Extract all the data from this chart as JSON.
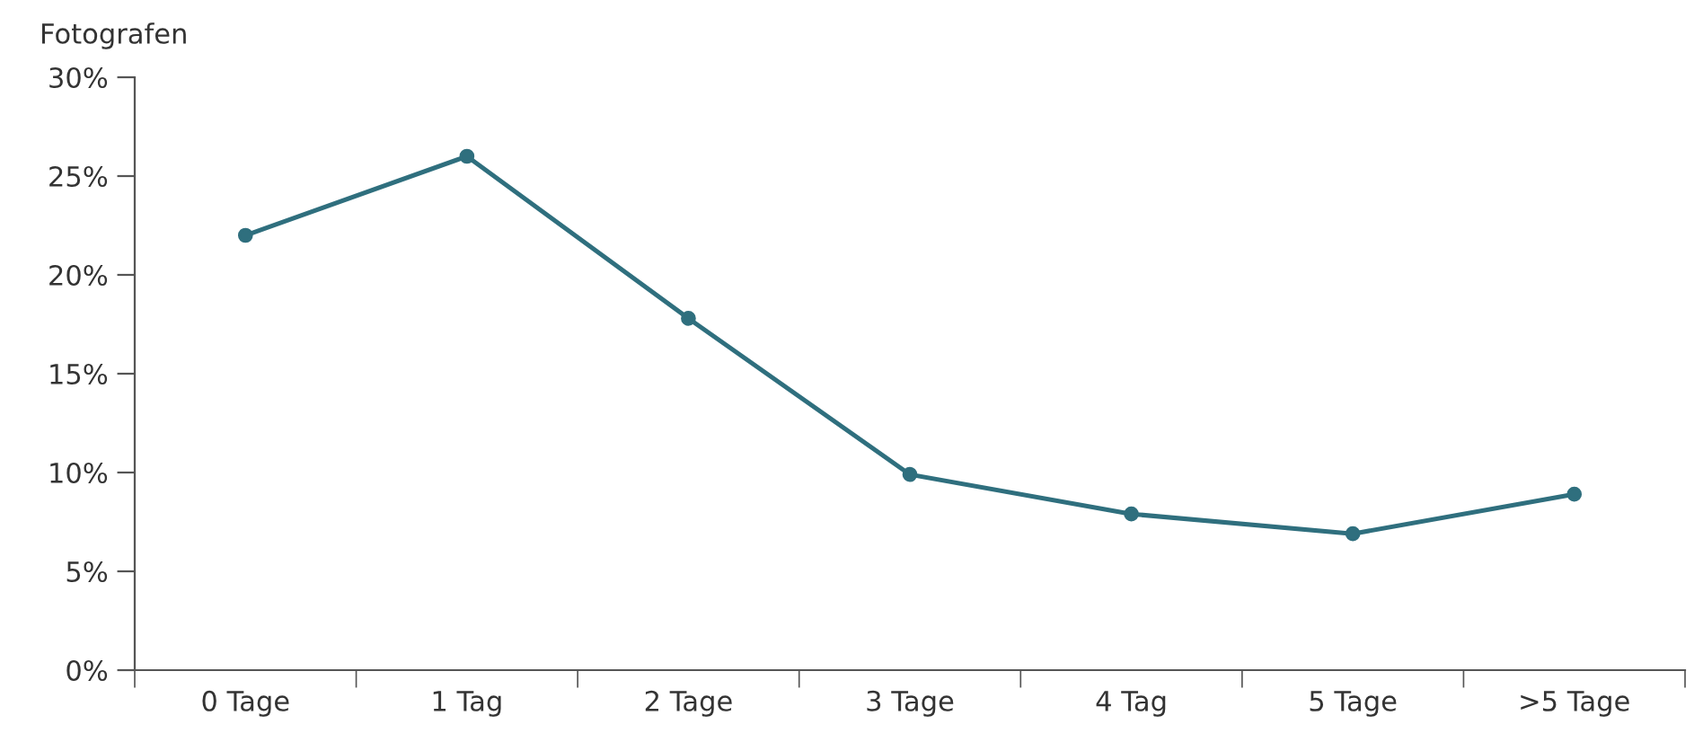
{
  "chart_data": {
    "type": "line",
    "ylabel": "Fotografen",
    "categories": [
      "0 Tage",
      "1 Tag",
      "2 Tage",
      "3 Tage",
      "4 Tag",
      "5 Tage",
      ">5 Tage"
    ],
    "values": [
      22,
      26,
      17.8,
      9.9,
      7.9,
      6.9,
      8.9
    ],
    "color": "#2f6f7e",
    "marker": "circle",
    "line_style": "solid",
    "grid": false,
    "ylim": [
      0,
      30
    ],
    "yticks": [
      {
        "value": 0,
        "label": "0%"
      },
      {
        "value": 5,
        "label": "5%"
      },
      {
        "value": 10,
        "label": "10%"
      },
      {
        "value": 15,
        "label": "15%"
      },
      {
        "value": 20,
        "label": "20%"
      },
      {
        "value": 25,
        "label": "25%"
      },
      {
        "value": 30,
        "label": "30%"
      }
    ]
  }
}
